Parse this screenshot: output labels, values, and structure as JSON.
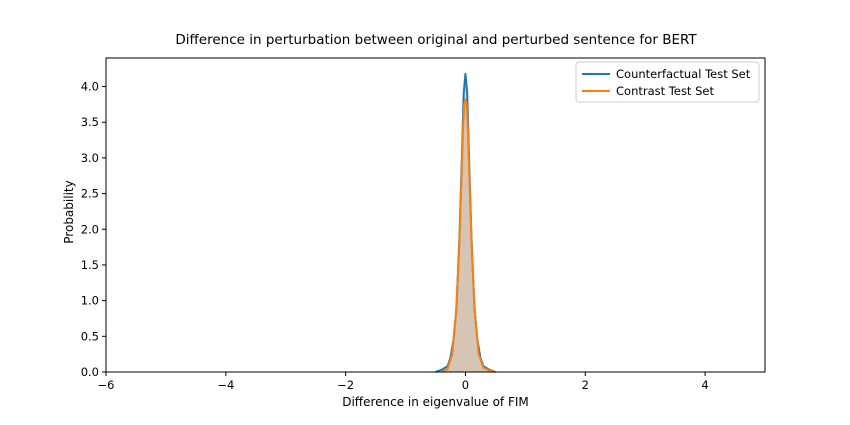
{
  "chart_data": {
    "type": "area",
    "title": "Difference in perturbation between original and perturbed sentence for BERT",
    "xlabel": "Difference in eigenvalue of FIM",
    "ylabel": "Probability",
    "xlim": [
      -6,
      5
    ],
    "ylim": [
      0,
      4.4
    ],
    "xticks": [
      "−6",
      "−4",
      "−2",
      "0",
      "2",
      "4"
    ],
    "xtick_values": [
      -6,
      -4,
      -2,
      0,
      2,
      4
    ],
    "yticks": [
      "0.0",
      "0.5",
      "1.0",
      "1.5",
      "2.0",
      "2.5",
      "3.0",
      "3.5",
      "4.0"
    ],
    "ytick_values": [
      0,
      0.5,
      1.0,
      1.5,
      2.0,
      2.5,
      3.0,
      3.5,
      4.0
    ],
    "legend_position": "top-right",
    "grid": false,
    "series": [
      {
        "name": "Counterfactual Test Set",
        "color": "#1f77b4",
        "x": [
          -0.5,
          -0.4,
          -0.3,
          -0.25,
          -0.2,
          -0.15,
          -0.1,
          -0.06,
          -0.03,
          0.0,
          0.03,
          0.06,
          0.1,
          0.15,
          0.2,
          0.25,
          0.3,
          0.4,
          0.5
        ],
        "y": [
          0.0,
          0.03,
          0.08,
          0.2,
          0.45,
          0.9,
          1.9,
          3.0,
          3.9,
          4.18,
          3.9,
          3.0,
          1.9,
          0.9,
          0.45,
          0.2,
          0.08,
          0.03,
          0.0
        ]
      },
      {
        "name": "Contrast Test Set",
        "color": "#ff7f0e",
        "x": [
          -0.4,
          -0.3,
          -0.22,
          -0.16,
          -0.11,
          -0.07,
          -0.04,
          -0.02,
          0.0,
          0.02,
          0.04,
          0.07,
          0.11,
          0.16,
          0.22,
          0.3,
          0.4,
          0.5
        ],
        "y": [
          0.0,
          0.04,
          0.25,
          0.8,
          1.6,
          2.6,
          3.4,
          3.75,
          3.82,
          3.75,
          3.4,
          2.6,
          1.6,
          0.8,
          0.25,
          0.06,
          0.02,
          0.0
        ]
      }
    ]
  }
}
